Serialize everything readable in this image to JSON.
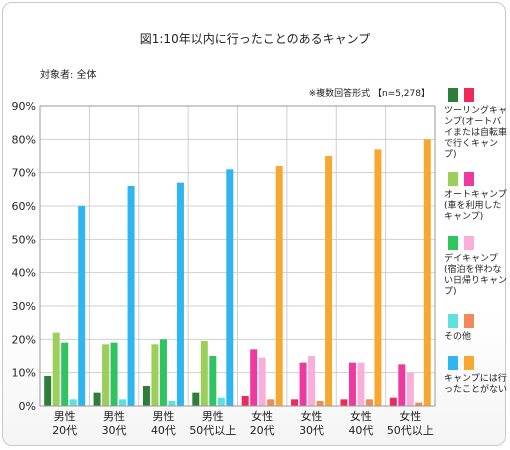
{
  "header": {
    "title": "図1:10年以内に行ったことのあるキャンプ",
    "subject": "対象者: 全体",
    "note": "※複数回答形式 【n=5,278】"
  },
  "chart_data": {
    "type": "bar",
    "title": "図1:10年以内に行ったことのあるキャンプ",
    "ylim": [
      0,
      90
    ],
    "yticks": [
      "0%",
      "10%",
      "20%",
      "30%",
      "40%",
      "50%",
      "60%",
      "70%",
      "80%",
      "90%"
    ],
    "grid": true,
    "legend_position": "right",
    "categories": [
      [
        "男性",
        "20代"
      ],
      [
        "男性",
        "30代"
      ],
      [
        "男性",
        "40代"
      ],
      [
        "男性",
        "50代以上"
      ],
      [
        "女性",
        "20代"
      ],
      [
        "女性",
        "30代"
      ],
      [
        "女性",
        "40代"
      ],
      [
        "女性",
        "50代以上"
      ]
    ],
    "series": [
      {
        "name": "ツーリングキャンプ(オートバイまたは自転車で行くキャンプ)",
        "colors": [
          "#2e7d3a",
          "#ee2a5a"
        ],
        "values": [
          9,
          4,
          6,
          4,
          3,
          2,
          2,
          2.5
        ]
      },
      {
        "name": "オートキャンプ(車を利用したキャンプ)",
        "colors": [
          "#9ccf5a",
          "#ee3aa0"
        ],
        "values": [
          22,
          18.5,
          18.5,
          19.5,
          17,
          13,
          13,
          12.5
        ]
      },
      {
        "name": "デイキャンプ(宿泊を伴わない日帰りキャンプ)",
        "colors": [
          "#2ec460",
          "#fcaedb"
        ],
        "values": [
          19,
          19,
          20,
          15,
          14.5,
          15,
          13,
          10
        ]
      },
      {
        "name": "その他",
        "colors": [
          "#5ee0e0",
          "#f08a5a"
        ],
        "values": [
          2,
          2,
          1.5,
          2.5,
          2,
          1.5,
          2,
          1
        ]
      },
      {
        "name": "キャンプには行ったことがない",
        "colors": [
          "#2fb6f0",
          "#f7a830"
        ],
        "values": [
          60,
          66,
          67,
          71,
          72,
          75,
          77,
          80
        ]
      }
    ]
  }
}
